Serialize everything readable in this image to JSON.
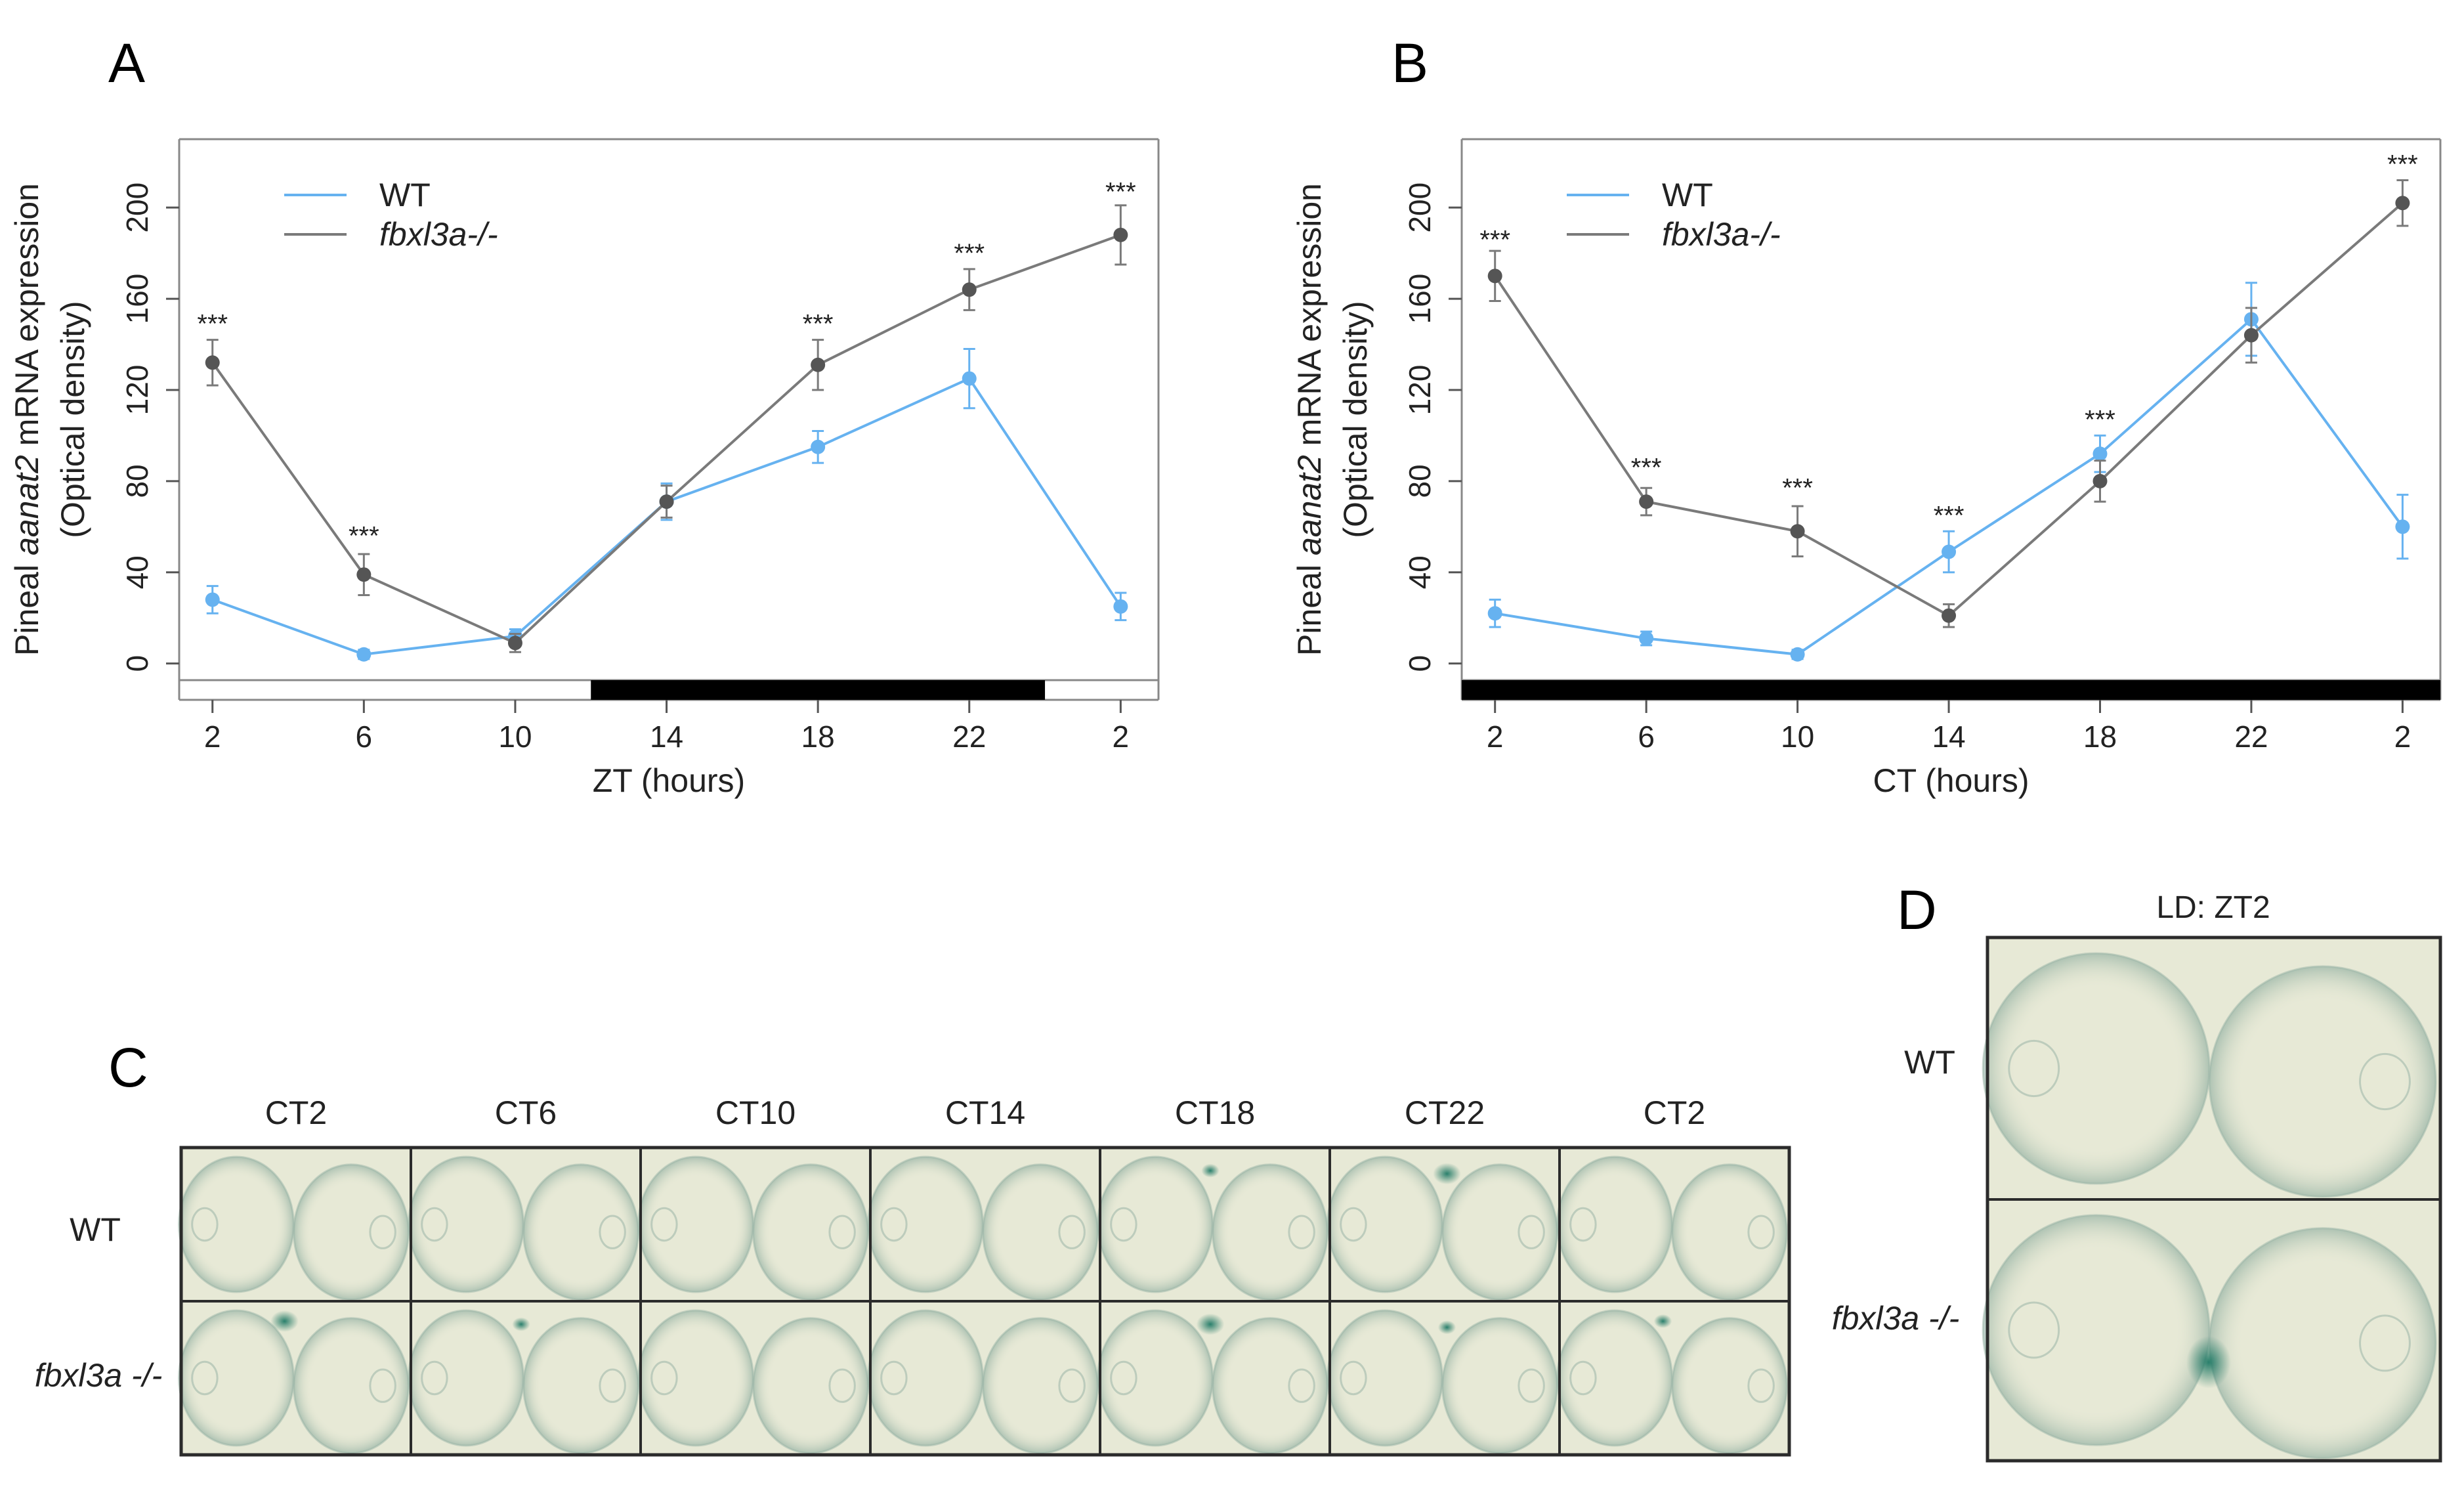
{
  "panels": {
    "A": {
      "letter": "A"
    },
    "B": {
      "letter": "B"
    },
    "C": {
      "letter": "C",
      "columns": [
        "CT2",
        "CT6",
        "CT10",
        "CT14",
        "CT18",
        "CT22",
        "CT2"
      ],
      "rows": [
        "WT",
        "fbxl3a -/-"
      ],
      "dots": [
        [
          0,
          0,
          0,
          0,
          1,
          2,
          0
        ],
        [
          2,
          1,
          0,
          0,
          2,
          1,
          1
        ]
      ]
    },
    "D": {
      "letter": "D",
      "title": "LD: ZT2",
      "rows": [
        "WT",
        "fbxl3a -/-"
      ]
    }
  },
  "colors": {
    "wt": "#66b2f0",
    "mutant": "#7a7a7a",
    "point_mutant": "#555555",
    "tissue_stain": "#2e7d6a",
    "grid_border": "#2b2b2b"
  },
  "chart_data": [
    {
      "id": "A",
      "type": "line",
      "xlabel": "ZT (hours)",
      "ylabel_pre": "Pineal ",
      "ylabel_gene": "aanat2",
      "ylabel_post": " mRNA expression",
      "ylabel2": "(Optical density)",
      "x_tick_labels": [
        "2",
        "6",
        "10",
        "14",
        "18",
        "22",
        "2"
      ],
      "x": [
        0,
        1,
        2,
        3,
        4,
        5,
        6
      ],
      "xlim": [
        -0.22,
        6.25
      ],
      "ylim": [
        -5,
        230
      ],
      "yticks": [
        0,
        40,
        80,
        120,
        160,
        200
      ],
      "legend": "top-left",
      "light_dark_bar": [
        {
          "from": -0.22,
          "to": 2.5,
          "state": "light"
        },
        {
          "from": 2.5,
          "to": 5.5,
          "state": "dark"
        },
        {
          "from": 5.5,
          "to": 6.25,
          "state": "light"
        }
      ],
      "series": [
        {
          "name": "WT",
          "values": [
            28,
            4,
            12,
            71,
            95,
            125,
            25
          ],
          "errors": [
            6,
            2,
            3,
            8,
            7,
            13,
            6
          ]
        },
        {
          "name": "fbxl3a-/-",
          "values": [
            132,
            39,
            9,
            71,
            131,
            164,
            188
          ],
          "errors": [
            10,
            9,
            4,
            7,
            11,
            9,
            13
          ]
        }
      ],
      "annotations": [
        {
          "x": 0,
          "y": 148,
          "text": "***"
        },
        {
          "x": 1,
          "y": 55,
          "text": "***"
        },
        {
          "x": 4,
          "y": 148,
          "text": "***"
        },
        {
          "x": 5,
          "y": 179,
          "text": "***"
        },
        {
          "x": 6,
          "y": 206,
          "text": "***"
        }
      ]
    },
    {
      "id": "B",
      "type": "line",
      "xlabel": "CT (hours)",
      "ylabel_pre": "Pineal ",
      "ylabel_gene": "aanat2",
      "ylabel_post": " mRNA expression",
      "ylabel2": "(Optical density)",
      "x_tick_labels": [
        "2",
        "6",
        "10",
        "14",
        "18",
        "22",
        "2"
      ],
      "x": [
        0,
        1,
        2,
        3,
        4,
        5,
        6
      ],
      "xlim": [
        -0.22,
        6.25
      ],
      "ylim": [
        -5,
        230
      ],
      "yticks": [
        0,
        40,
        80,
        120,
        160,
        200
      ],
      "legend": "top-left",
      "light_dark_bar": [
        {
          "from": -0.22,
          "to": 6.25,
          "state": "dark"
        }
      ],
      "series": [
        {
          "name": "WT",
          "values": [
            22,
            11,
            4,
            49,
            92,
            151,
            60
          ],
          "errors": [
            6,
            3,
            2,
            9,
            8,
            16,
            14
          ]
        },
        {
          "name": "fbxl3a-/-",
          "values": [
            170,
            71,
            58,
            21,
            80,
            144,
            202
          ],
          "errors": [
            11,
            6,
            11,
            5,
            9,
            12,
            10
          ]
        }
      ],
      "annotations": [
        {
          "x": 0,
          "y": 185,
          "text": "***"
        },
        {
          "x": 1,
          "y": 85,
          "text": "***"
        },
        {
          "x": 2,
          "y": 76,
          "text": "***"
        },
        {
          "x": 3,
          "y": 64,
          "text": "***"
        },
        {
          "x": 4,
          "y": 106,
          "text": "***"
        },
        {
          "x": 6,
          "y": 218,
          "text": "***"
        }
      ]
    }
  ]
}
